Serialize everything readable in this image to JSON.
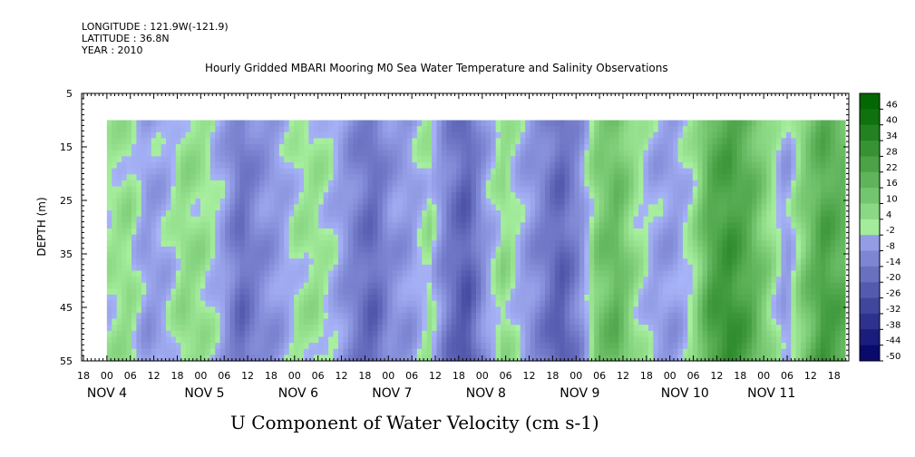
{
  "header": {
    "longitude": "LONGITUDE : 121.9W(-121.9)",
    "latitude": "LATITUDE : 36.8N",
    "year": "YEAR : 2010",
    "title": "Hourly Gridded MBARI Mooring M0 Sea Water Temperature and Salinity Observations"
  },
  "chart_data": {
    "type": "heatmap",
    "title": "U Component of Water Velocity (cm s-1)",
    "ylabel": "DEPTH (m)",
    "ylim": [
      5,
      55
    ],
    "yticks": [
      5,
      15,
      25,
      35,
      45,
      55
    ],
    "data_depth_range": [
      10,
      55
    ],
    "x_hour_labels": [
      "18",
      "00",
      "06",
      "12",
      "18",
      "00",
      "06",
      "12",
      "18",
      "00",
      "06",
      "12",
      "18",
      "00",
      "06",
      "12",
      "18",
      "00",
      "06",
      "12",
      "18",
      "00",
      "06",
      "12",
      "18",
      "00",
      "06",
      "12",
      "18",
      "00",
      "06",
      "12",
      "18"
    ],
    "x_day_labels": [
      "NOV  4",
      "NOV  5",
      "NOV  6",
      "NOV  7",
      "NOV  8",
      "NOV  9",
      "NOV 10",
      "NOV 11"
    ],
    "colorbar_levels": [
      48,
      46,
      40,
      34,
      28,
      22,
      16,
      10,
      4,
      -2,
      -8,
      -14,
      -20,
      -26,
      -32,
      -38,
      -44,
      -50
    ],
    "colorbar_labels": [
      "46",
      "40",
      "34",
      "28",
      "22",
      "16",
      "10",
      "4",
      "-2",
      "-8",
      "-14",
      "-20",
      "-26",
      "-32",
      "-38",
      "-44",
      "-50"
    ],
    "time_start": "NOV 4 00",
    "u_time_profile_by_6h": [
      2,
      5,
      -6,
      -3,
      6,
      4,
      -4,
      -18,
      -10,
      -6,
      2,
      4,
      -2,
      -12,
      -20,
      -8,
      -6,
      3,
      -14,
      -24,
      -6,
      6,
      -4,
      -12,
      -22,
      -10,
      12,
      18,
      4,
      -4,
      -6,
      2,
      24,
      30,
      22,
      8,
      -6,
      12,
      26,
      20
    ],
    "colors": {
      "positive_light": "#a8f0a0",
      "positive_dark": "#006400",
      "negative_light": "#a8b4f8",
      "negative_dark": "#000064"
    }
  }
}
